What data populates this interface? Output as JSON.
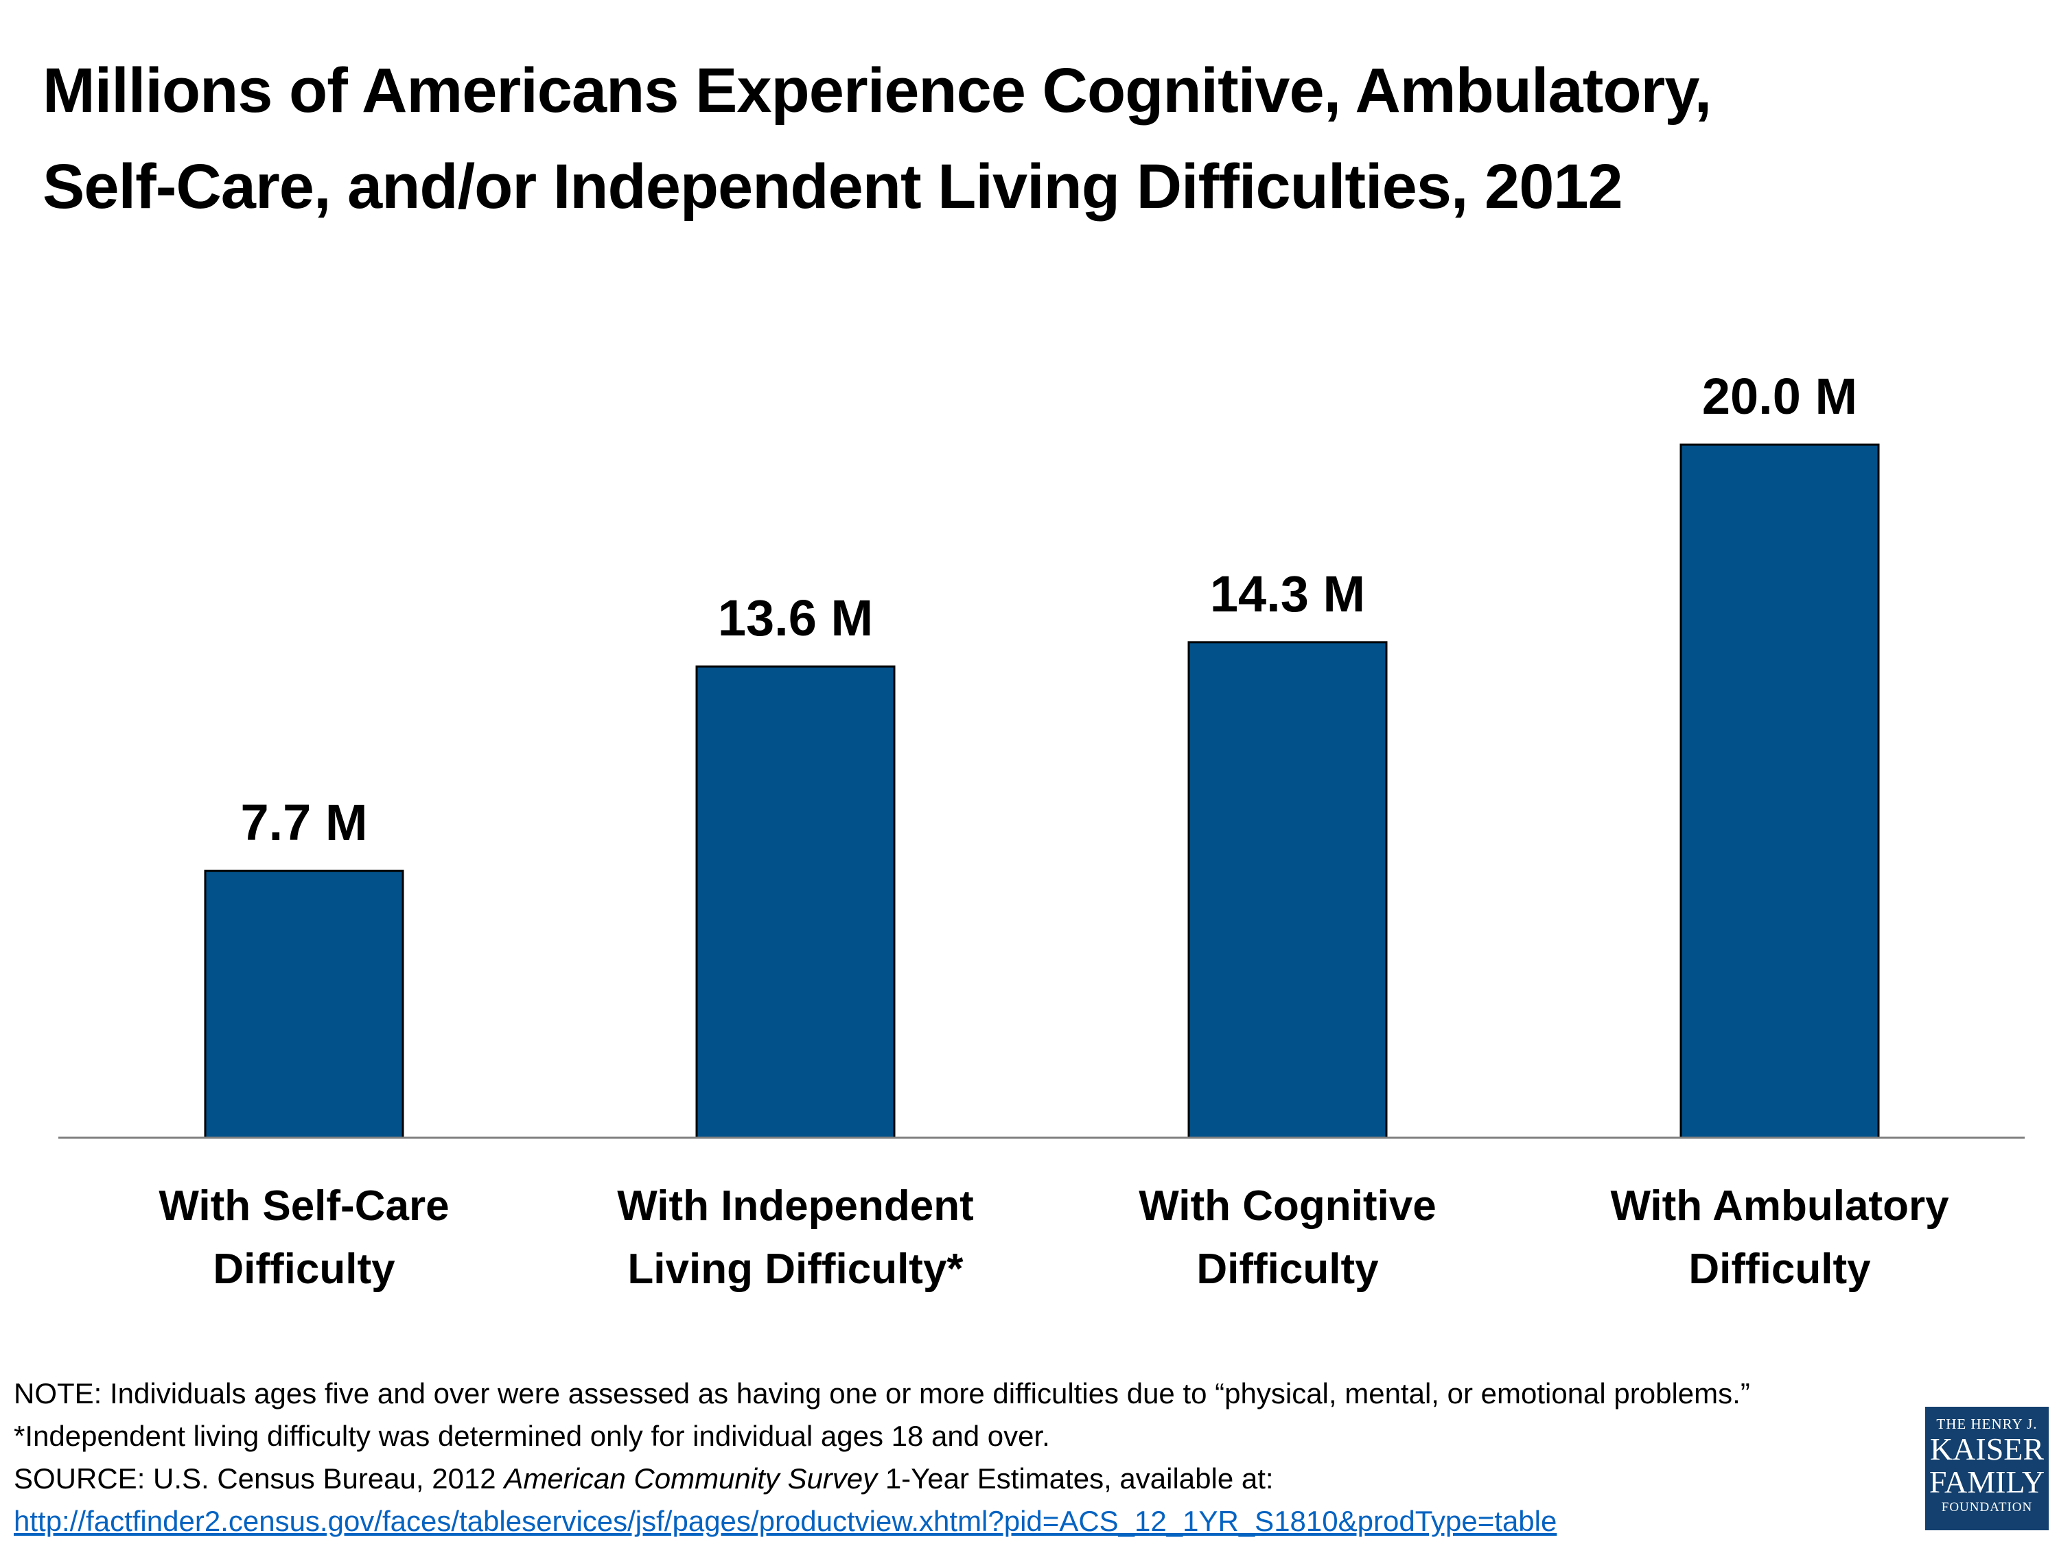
{
  "title": {
    "line1": "Millions of Americans Experience Cognitive, Ambulatory,",
    "line2": "Self-Care, and/or Independent Living Difficulties, 2012"
  },
  "chart_data": {
    "type": "bar",
    "title": "Millions of Americans Experience Cognitive, Ambulatory, Self-Care, and/or Independent Living Difficulties, 2012",
    "categories": [
      [
        "With Self-Care",
        "Difficulty"
      ],
      [
        "With Independent",
        "Living Difficulty*"
      ],
      [
        "With Cognitive",
        "Difficulty"
      ],
      [
        "With Ambulatory",
        "Difficulty"
      ]
    ],
    "values": [
      7.7,
      13.6,
      14.3,
      20.0
    ],
    "value_labels": [
      "7.7 M",
      "13.6 M",
      "14.3 M",
      "20.0 M"
    ],
    "unit": "M",
    "ylim": [
      0,
      20.0
    ],
    "grid": false,
    "legend": "none",
    "bar_color": "#02518A",
    "bar_edge_color": "#000000",
    "baseline_color": "#808080"
  },
  "notes": {
    "note": "NOTE: Individuals ages five and over were assessed as having one or more difficulties due to “physical, mental, or emotional problems.”",
    "footnote": "*Independent living difficulty was determined only for individual ages 18 and over.",
    "source_prefix": "SOURCE: U.S. Census Bureau, 2012 ",
    "source_italic": "American Community Survey",
    "source_suffix": " 1-Year Estimates, available at:",
    "link": "http://factfinder2.census.gov/faces/tableservices/jsf/pages/productview.xhtml?pid=ACS_12_1YR_S1810&prodType=table"
  },
  "logo": {
    "line1": "THE HENRY J.",
    "line2": "KAISER",
    "line3": "FAMILY",
    "line4": "FOUNDATION"
  }
}
